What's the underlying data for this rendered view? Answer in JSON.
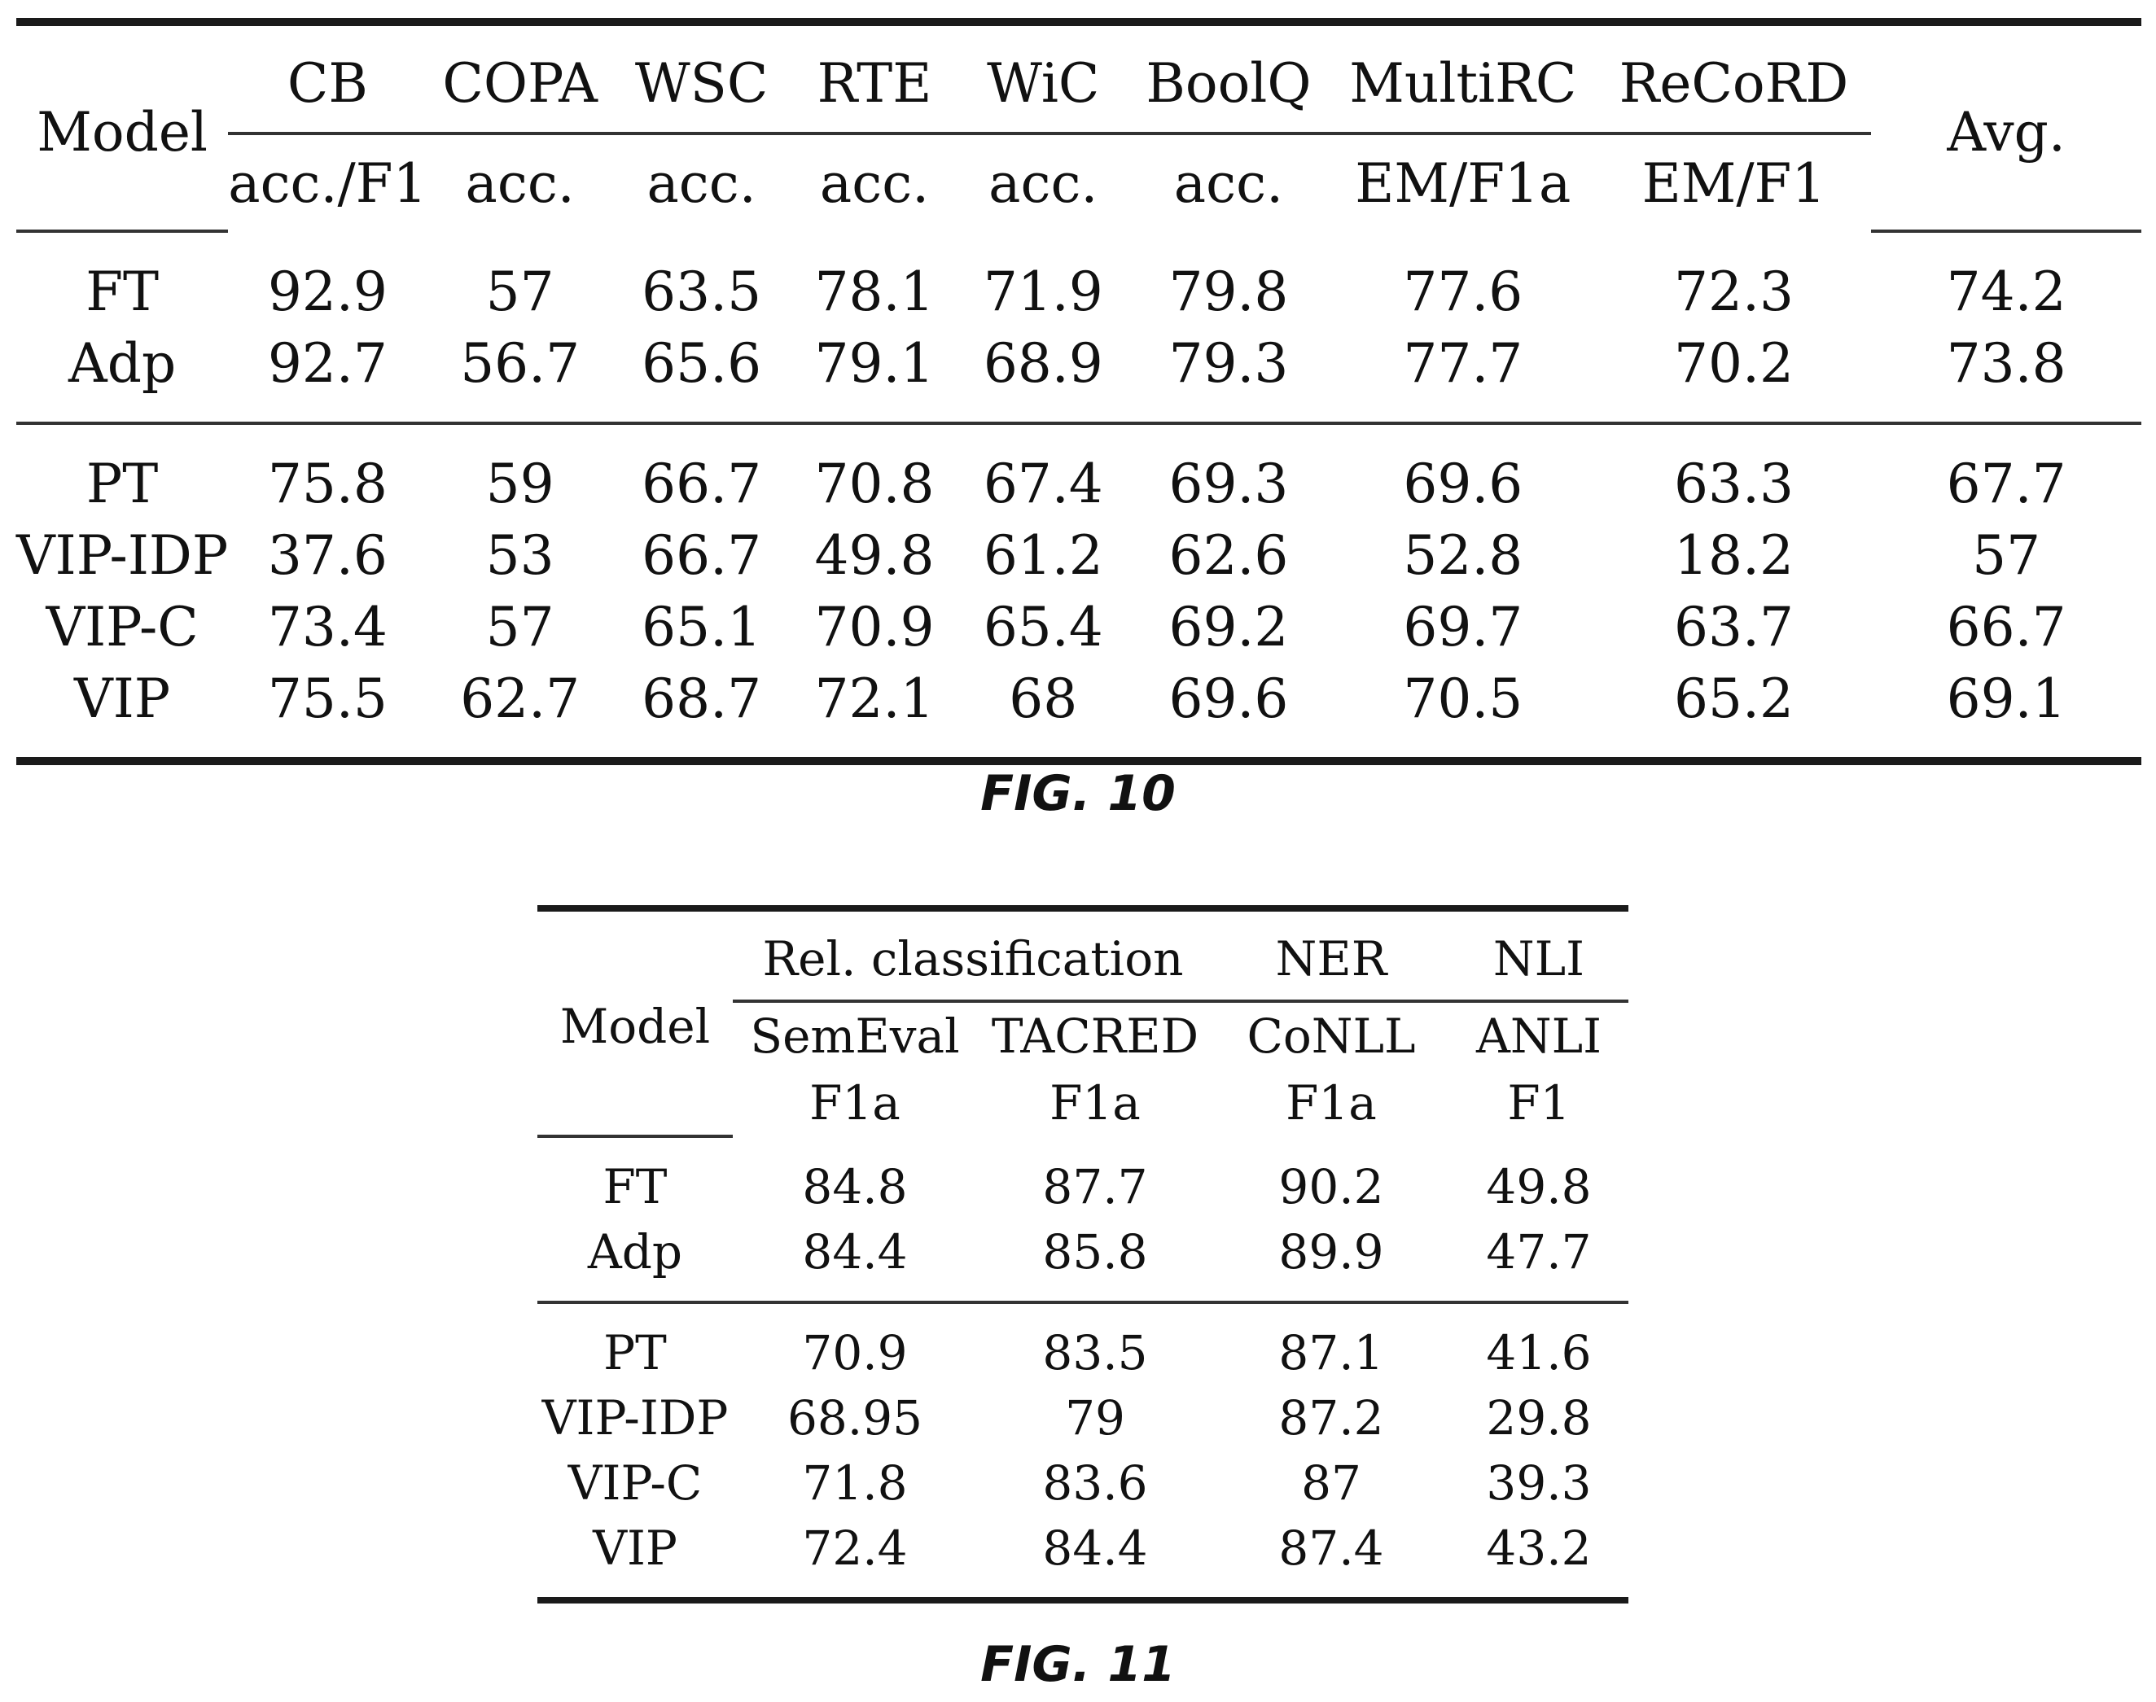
{
  "fig10": {
    "caption": "FIG. 10",
    "model_header": "Model",
    "avg_header": "Avg.",
    "columns": [
      {
        "name": "CB",
        "metric": "acc./F1"
      },
      {
        "name": "COPA",
        "metric": "acc."
      },
      {
        "name": "WSC",
        "metric": "acc."
      },
      {
        "name": "RTE",
        "metric": "acc."
      },
      {
        "name": "WiC",
        "metric": "acc."
      },
      {
        "name": "BoolQ",
        "metric": "acc."
      },
      {
        "name": "MultiRC",
        "metric": "EM/F1a"
      },
      {
        "name": "ReCoRD",
        "metric": "EM/F1"
      }
    ],
    "rows": [
      {
        "model": "FT",
        "values": [
          "92.9",
          "57",
          "63.5",
          "78.1",
          "71.9",
          "79.8",
          "77.6",
          "72.3"
        ],
        "avg": "74.2"
      },
      {
        "model": "Adp",
        "values": [
          "92.7",
          "56.7",
          "65.6",
          "79.1",
          "68.9",
          "79.3",
          "77.7",
          "70.2"
        ],
        "avg": "73.8"
      },
      {
        "model": "PT",
        "values": [
          "75.8",
          "59",
          "66.7",
          "70.8",
          "67.4",
          "69.3",
          "69.6",
          "63.3"
        ],
        "avg": "67.7"
      },
      {
        "model": "VIP-IDP",
        "values": [
          "37.6",
          "53",
          "66.7",
          "49.8",
          "61.2",
          "62.6",
          "52.8",
          "18.2"
        ],
        "avg": "57"
      },
      {
        "model": "VIP-C",
        "values": [
          "73.4",
          "57",
          "65.1",
          "70.9",
          "65.4",
          "69.2",
          "69.7",
          "63.7"
        ],
        "avg": "66.7"
      },
      {
        "model": "VIP",
        "values": [
          "75.5",
          "62.7",
          "68.7",
          "72.1",
          "68",
          "69.6",
          "70.5",
          "65.2"
        ],
        "avg": "69.1"
      }
    ]
  },
  "fig11": {
    "caption": "FIG. 11",
    "model_header": "Model",
    "groups": [
      "Rel. classification",
      "NER",
      "NLI"
    ],
    "columns": [
      {
        "name": "SemEval",
        "metric": "F1a"
      },
      {
        "name": "TACRED",
        "metric": "F1a"
      },
      {
        "name": "CoNLL",
        "metric": "F1a"
      },
      {
        "name": "ANLI",
        "metric": "F1"
      }
    ],
    "rows": [
      {
        "model": "FT",
        "values": [
          "84.8",
          "87.7",
          "90.2",
          "49.8"
        ]
      },
      {
        "model": "Adp",
        "values": [
          "84.4",
          "85.8",
          "89.9",
          "47.7"
        ]
      },
      {
        "model": "PT",
        "values": [
          "70.9",
          "83.5",
          "87.1",
          "41.6"
        ]
      },
      {
        "model": "VIP-IDP",
        "values": [
          "68.95",
          "79",
          "87.2",
          "29.8"
        ]
      },
      {
        "model": "VIP-C",
        "values": [
          "71.8",
          "83.6",
          "87",
          "39.3"
        ]
      },
      {
        "model": "VIP",
        "values": [
          "72.4",
          "84.4",
          "87.4",
          "43.2"
        ]
      }
    ]
  }
}
